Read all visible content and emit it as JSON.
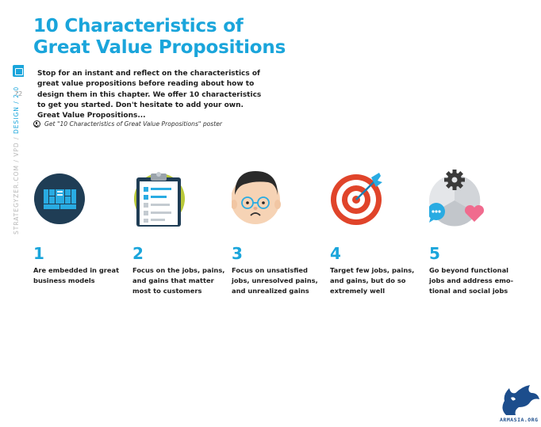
{
  "page": {
    "title_line1": "10 Characteristics of",
    "title_line2": "Great Value Propositions",
    "page_number": "72",
    "side_label_prefix": "STRATEGYZER.COM / VPD / ",
    "side_label_accent": "DESIGN / 2.0",
    "intro": "Stop for an instant and reflect on the characteristics of great value propositions before reading about how to design them in this chapter. We offer 10 characteristics to get you started. Don't hesitate to add your own. Great Value Propositions...",
    "poster_link": "Get \"10 Characteristics of Great Value Propositions\" poster",
    "logo_text": "ARMASIA.ORG"
  },
  "characteristics": [
    {
      "number": "1",
      "text": "Are embedded in great business models",
      "icon": "business-model-canvas-icon"
    },
    {
      "number": "2",
      "text": "Focus on the jobs, pains, and gains that matter most to customers",
      "icon": "clipboard-icon"
    },
    {
      "number": "3",
      "text": "Focus on unsatisfied jobs, unresolved pains, and unrealized gains",
      "icon": "unhappy-face-icon"
    },
    {
      "number": "4",
      "text": "Target few jobs, pains, and gains, but do so extremely well",
      "icon": "target-icon"
    },
    {
      "number": "5",
      "text": "Go beyond functional jobs and address emo-tional and social jobs",
      "icon": "gear-chat-heart-icon"
    }
  ],
  "colors": {
    "accent": "#1aa5db",
    "dark_navy": "#1f3d55",
    "target_red": "#e0442a",
    "heart_pink": "#f06b8e",
    "clipboard_lime": "#b9c93a"
  }
}
